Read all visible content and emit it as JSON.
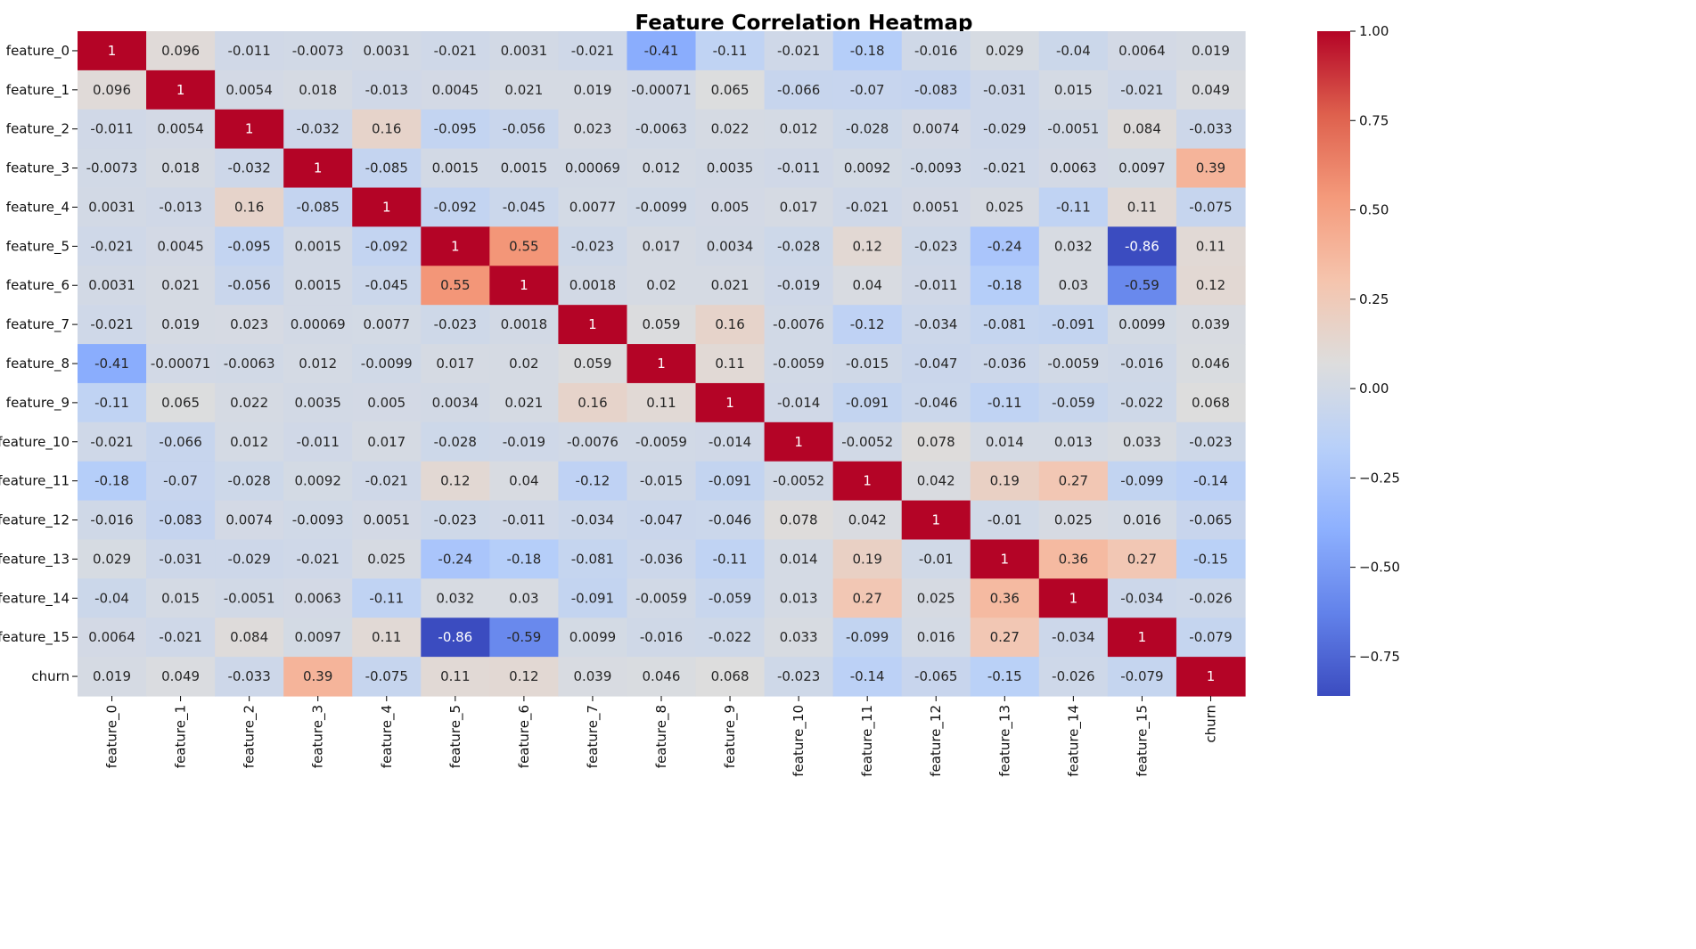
{
  "chart_data": {
    "type": "heatmap",
    "title": "Feature Correlation Heatmap",
    "xlabel": "",
    "ylabel": "",
    "labels": [
      "feature_0",
      "feature_1",
      "feature_2",
      "feature_3",
      "feature_4",
      "feature_5",
      "feature_6",
      "feature_7",
      "feature_8",
      "feature_9",
      "feature_10",
      "feature_11",
      "feature_12",
      "feature_13",
      "feature_14",
      "feature_15",
      "churn"
    ],
    "colormap": "coolwarm",
    "vmin": -0.86,
    "vmax": 1.0,
    "colorbar_ticks": [
      1.0,
      0.75,
      0.5,
      0.25,
      0.0,
      -0.25,
      -0.5,
      -0.75
    ],
    "colorbar_tick_labels": [
      "1.00",
      "0.75",
      "0.50",
      "0.25",
      "0.00",
      "−0.25",
      "−0.50",
      "−0.75"
    ],
    "values": [
      [
        1,
        0.096,
        -0.011,
        -0.0073,
        0.0031,
        -0.021,
        0.0031,
        -0.021,
        -0.41,
        -0.11,
        -0.021,
        -0.18,
        -0.016,
        0.029,
        -0.04,
        0.0064,
        0.019
      ],
      [
        0.096,
        1,
        0.0054,
        0.018,
        -0.013,
        0.0045,
        0.021,
        0.019,
        -0.00071,
        0.065,
        -0.066,
        -0.07,
        -0.083,
        -0.031,
        0.015,
        -0.021,
        0.049
      ],
      [
        -0.011,
        0.0054,
        1,
        -0.032,
        0.16,
        -0.095,
        -0.056,
        0.023,
        -0.0063,
        0.022,
        0.012,
        -0.028,
        0.0074,
        -0.029,
        -0.0051,
        0.084,
        -0.033
      ],
      [
        -0.0073,
        0.018,
        -0.032,
        1,
        -0.085,
        0.0015,
        0.0015,
        0.00069,
        0.012,
        0.0035,
        -0.011,
        0.0092,
        -0.0093,
        -0.021,
        0.0063,
        0.0097,
        0.39
      ],
      [
        0.0031,
        -0.013,
        0.16,
        -0.085,
        1,
        -0.092,
        -0.045,
        0.0077,
        -0.0099,
        0.005,
        0.017,
        -0.021,
        0.0051,
        0.025,
        -0.11,
        0.11,
        -0.075
      ],
      [
        -0.021,
        0.0045,
        -0.095,
        0.0015,
        -0.092,
        1,
        0.55,
        -0.023,
        0.017,
        0.0034,
        -0.028,
        0.12,
        -0.023,
        -0.24,
        0.032,
        -0.86,
        0.11
      ],
      [
        0.0031,
        0.021,
        -0.056,
        0.0015,
        -0.045,
        0.55,
        1,
        0.0018,
        0.02,
        0.021,
        -0.019,
        0.04,
        -0.011,
        -0.18,
        0.03,
        -0.59,
        0.12
      ],
      [
        -0.021,
        0.019,
        0.023,
        0.00069,
        0.0077,
        -0.023,
        0.0018,
        1,
        0.059,
        0.16,
        -0.0076,
        -0.12,
        -0.034,
        -0.081,
        -0.091,
        0.0099,
        0.039
      ],
      [
        -0.41,
        -0.00071,
        -0.0063,
        0.012,
        -0.0099,
        0.017,
        0.02,
        0.059,
        1,
        0.11,
        -0.0059,
        -0.015,
        -0.047,
        -0.036,
        -0.0059,
        -0.016,
        0.046
      ],
      [
        -0.11,
        0.065,
        0.022,
        0.0035,
        0.005,
        0.0034,
        0.021,
        0.16,
        0.11,
        1,
        -0.014,
        -0.091,
        -0.046,
        -0.11,
        -0.059,
        -0.022,
        0.068
      ],
      [
        -0.021,
        -0.066,
        0.012,
        -0.011,
        0.017,
        -0.028,
        -0.019,
        -0.0076,
        -0.0059,
        -0.014,
        1,
        -0.0052,
        0.078,
        0.014,
        0.013,
        0.033,
        -0.023
      ],
      [
        -0.18,
        -0.07,
        -0.028,
        0.0092,
        -0.021,
        0.12,
        0.04,
        -0.12,
        -0.015,
        -0.091,
        -0.0052,
        1,
        0.042,
        0.19,
        0.27,
        -0.099,
        -0.14
      ],
      [
        -0.016,
        -0.083,
        0.0074,
        -0.0093,
        0.0051,
        -0.023,
        -0.011,
        -0.034,
        -0.047,
        -0.046,
        0.078,
        0.042,
        1,
        -0.01,
        0.025,
        0.016,
        -0.065
      ],
      [
        0.029,
        -0.031,
        -0.029,
        -0.021,
        0.025,
        -0.24,
        -0.18,
        -0.081,
        -0.036,
        -0.11,
        0.014,
        0.19,
        -0.01,
        1,
        0.36,
        0.27,
        -0.15
      ],
      [
        -0.04,
        0.015,
        -0.0051,
        0.0063,
        -0.11,
        0.032,
        0.03,
        -0.091,
        -0.0059,
        -0.059,
        0.013,
        0.27,
        0.025,
        0.36,
        1,
        -0.034,
        -0.026
      ],
      [
        0.0064,
        -0.021,
        0.084,
        0.0097,
        0.11,
        -0.86,
        -0.59,
        0.0099,
        -0.016,
        -0.022,
        0.033,
        -0.099,
        0.016,
        0.27,
        -0.034,
        1,
        -0.079
      ],
      [
        0.019,
        0.049,
        -0.033,
        0.39,
        -0.075,
        0.11,
        0.12,
        0.039,
        0.046,
        0.068,
        -0.023,
        -0.14,
        -0.065,
        -0.15,
        -0.026,
        -0.079,
        1
      ]
    ]
  }
}
